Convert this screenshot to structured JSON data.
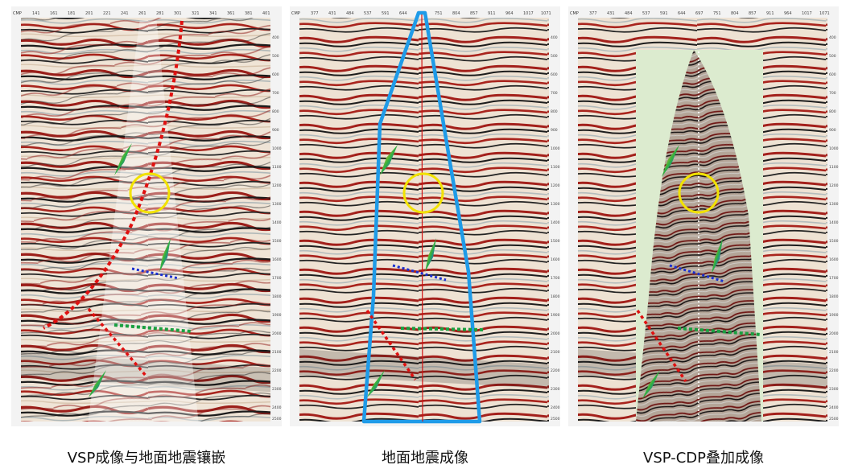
{
  "panels": [
    {
      "id": "mosaic",
      "caption": "VSP成像与地面地震镶嵌",
      "axis_top": [
        "141",
        "161",
        "181",
        "201",
        "221",
        "241",
        "261",
        "281",
        "301",
        "321",
        "341",
        "361",
        "381",
        "401"
      ],
      "depth_ticks": [
        "400",
        "500",
        "600",
        "700",
        "800",
        "900",
        "1000",
        "1100",
        "1200",
        "1300",
        "1400",
        "1500",
        "1600",
        "1700",
        "1800",
        "1900",
        "2000",
        "2100",
        "2200",
        "2300",
        "2400",
        "2500"
      ]
    },
    {
      "id": "surface",
      "caption": "地面地震成像",
      "axis_top": [
        "377",
        "431",
        "484",
        "537",
        "591",
        "644",
        "697",
        "751",
        "804",
        "857",
        "911",
        "964",
        "1017",
        "1071"
      ],
      "depth_ticks": [
        "400",
        "500",
        "600",
        "700",
        "800",
        "900",
        "1000",
        "1100",
        "1200",
        "1300",
        "1400",
        "1500",
        "1600",
        "1700",
        "1800",
        "1900",
        "2000",
        "2100",
        "2200",
        "2300",
        "2400",
        "2500"
      ]
    },
    {
      "id": "vsp-cdp",
      "caption": "VSP-CDP叠加成像",
      "axis_top": [
        "377",
        "431",
        "484",
        "537",
        "591",
        "644",
        "697",
        "751",
        "804",
        "857",
        "911",
        "964",
        "1017",
        "1071"
      ],
      "depth_ticks": [
        "400",
        "500",
        "600",
        "700",
        "800",
        "900",
        "1000",
        "1100",
        "1200",
        "1300",
        "1400",
        "1500",
        "1600",
        "1700",
        "1800",
        "1900",
        "2000",
        "2100",
        "2200",
        "2300",
        "2400",
        "2500"
      ]
    }
  ],
  "axis_label": "CMP",
  "colors": {
    "fault": "#e01010",
    "circle": "#f2e200",
    "blue_marker": "#1a2fd0",
    "green_marker": "#1aa040",
    "outline_blue": "#1f9be8",
    "well_line": "#d01010",
    "mask_green": "#dcebcf"
  }
}
